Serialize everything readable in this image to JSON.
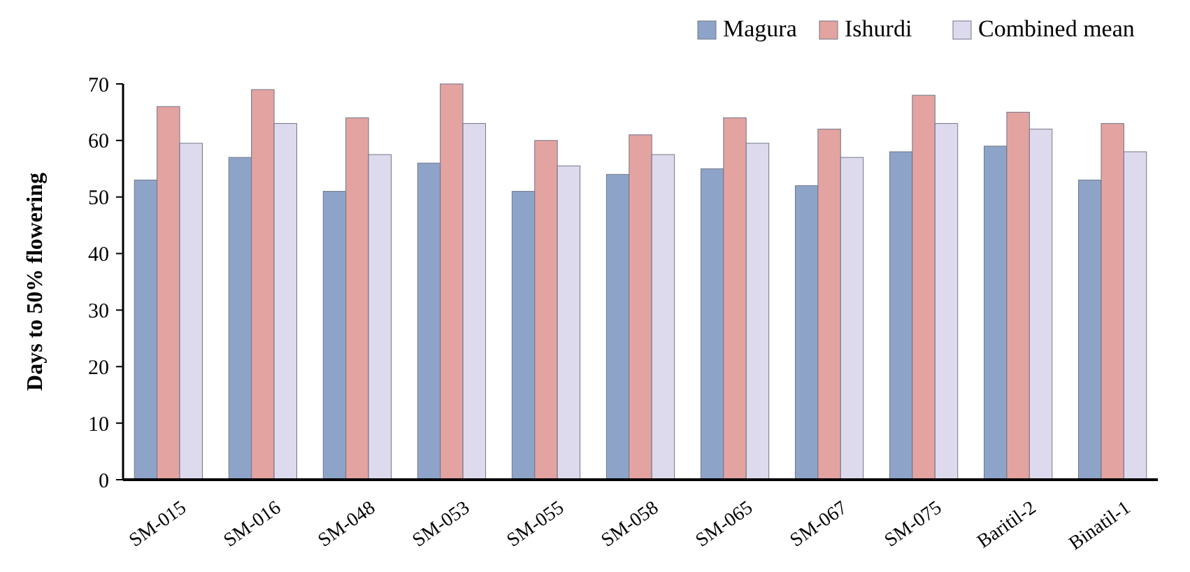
{
  "chart_data": {
    "type": "bar",
    "ylabel": "Days to 50% flowering",
    "categories": [
      "SM-015",
      "SM-016",
      "SM-048",
      "SM-053",
      "SM-055",
      "SM-058",
      "SM-065",
      "SM-067",
      "SM-075",
      "Baritil-2",
      "Binatil-1"
    ],
    "series": [
      {
        "name": "Magura",
        "color": "#8ea3c8",
        "values": [
          53,
          57,
          51,
          56,
          51,
          54,
          55,
          52,
          58,
          59,
          53
        ]
      },
      {
        "name": "Ishurdi",
        "color": "#e3a3a1",
        "values": [
          66,
          69,
          64,
          70,
          60,
          61,
          64,
          62,
          68,
          65,
          63
        ]
      },
      {
        "name": "Combined mean",
        "color": "#dedaee",
        "values": [
          59.5,
          63,
          57.5,
          63,
          55.5,
          57.5,
          59.5,
          57,
          63,
          62,
          58
        ]
      }
    ],
    "ylim": [
      0,
      70
    ],
    "yticks": [
      0,
      10,
      20,
      30,
      40,
      50,
      60,
      70
    ],
    "legend": "top right"
  }
}
